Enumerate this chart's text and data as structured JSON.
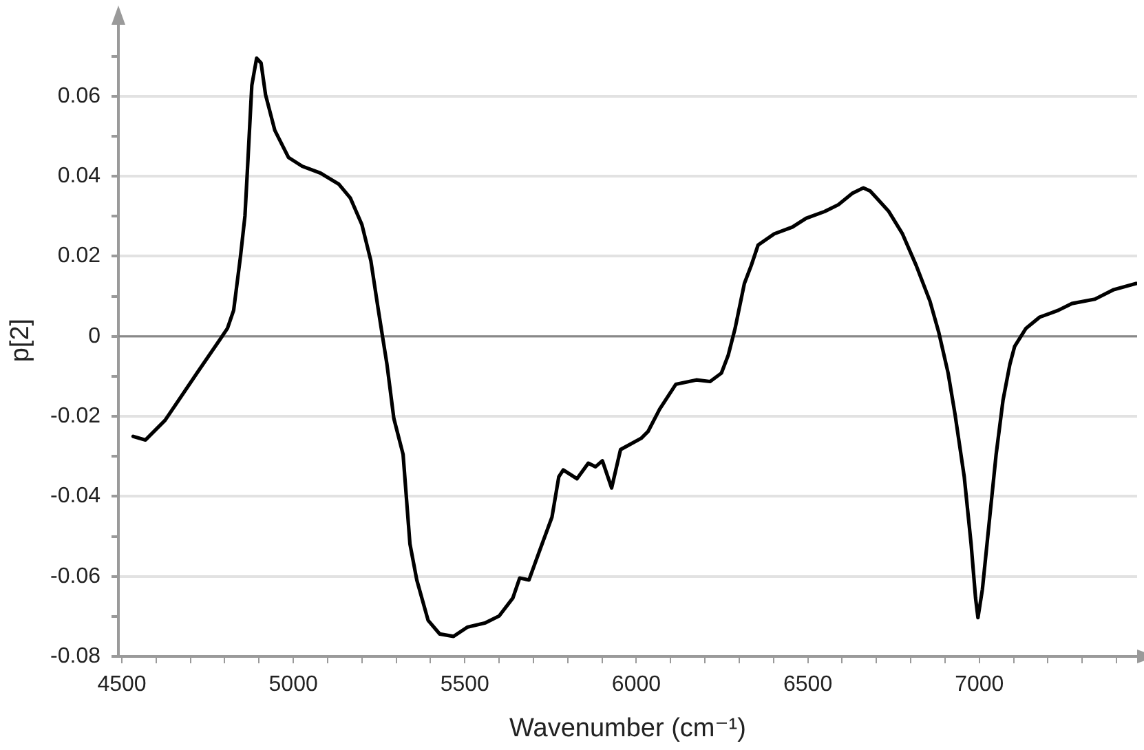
{
  "chart_data": {
    "type": "line",
    "xlabel": "Wavenumber (cm⁻¹)",
    "ylabel": "p[2]",
    "xlim": [
      4490,
      7460
    ],
    "ylim": [
      -0.08,
      0.078
    ],
    "xticks": [
      4500,
      {
        "value": 4600,
        "label": null
      },
      {
        "value": 4700,
        "label": null
      },
      {
        "value": 4800,
        "label": null
      },
      {
        "value": 4900,
        "label": null
      },
      5000,
      {
        "value": 5100,
        "label": null
      },
      {
        "value": 5200,
        "label": null
      },
      {
        "value": 5300,
        "label": null
      },
      {
        "value": 5400,
        "label": null
      },
      5500,
      {
        "value": 5600,
        "label": null
      },
      {
        "value": 5700,
        "label": null
      },
      {
        "value": 5800,
        "label": null
      },
      {
        "value": 5900,
        "label": null
      },
      6000,
      {
        "value": 6100,
        "label": null
      },
      {
        "value": 6200,
        "label": null
      },
      {
        "value": 6300,
        "label": null
      },
      {
        "value": 6400,
        "label": null
      },
      6500,
      {
        "value": 6600,
        "label": null
      },
      {
        "value": 6700,
        "label": null
      },
      {
        "value": 6800,
        "label": null
      },
      {
        "value": 6900,
        "label": null
      },
      7000,
      {
        "value": 7100,
        "label": null
      },
      {
        "value": 7200,
        "label": null
      },
      {
        "value": 7300,
        "label": null
      },
      {
        "value": 7400,
        "label": null
      }
    ],
    "yticks": [
      -0.08,
      {
        "value": -0.07,
        "label": null
      },
      -0.06,
      {
        "value": -0.05,
        "label": null
      },
      -0.04,
      {
        "value": -0.03,
        "label": null
      },
      -0.02,
      {
        "value": -0.01,
        "label": null
      },
      0,
      {
        "value": 0.01,
        "label": null
      },
      0.02,
      {
        "value": 0.03,
        "label": null
      },
      0.04,
      {
        "value": 0.05,
        "label": null
      },
      0.06,
      {
        "value": 0.07,
        "label": null
      }
    ],
    "grid": "y",
    "legend": false,
    "marker": "none",
    "line_style": "solid",
    "ref_lines": [
      {
        "axis": "y",
        "value": 0,
        "color": "#888888"
      }
    ],
    "series": [
      {
        "color": "#000000",
        "x": [
          4533,
          4569,
          4626,
          4719,
          4786,
          4808,
          4826,
          4846,
          4859,
          4866,
          4879,
          4893,
          4906,
          4919,
          4946,
          4986,
          5026,
          5079,
          5133,
          5166,
          5200,
          5226,
          5246,
          5260,
          5273,
          5293,
          5320,
          5340,
          5360,
          5393,
          5427,
          5467,
          5507,
          5560,
          5600,
          5640,
          5660,
          5687,
          5720,
          5754,
          5774,
          5787,
          5827,
          5860,
          5881,
          5901,
          5928,
          5954,
          6014,
          6034,
          6068,
          6115,
          6175,
          6215,
          6248,
          6268,
          6288,
          6315,
          6335,
          6355,
          6402,
          6455,
          6495,
          6549,
          6589,
          6629,
          6662,
          6682,
          6736,
          6776,
          6816,
          6856,
          6882,
          6909,
          6929,
          6956,
          6976,
          6989,
          6996,
          7009,
          7029,
          7049,
          7069,
          7089,
          7103,
          7136,
          7176,
          7230,
          7270,
          7337,
          7390,
          7457
        ],
        "values": [
          -0.025,
          -0.0259,
          -0.021,
          -0.0092,
          -0.0008,
          0.002,
          0.0065,
          0.02,
          0.0301,
          0.0413,
          0.0627,
          0.0695,
          0.0683,
          0.0604,
          0.0515,
          0.0447,
          0.0425,
          0.0408,
          0.038,
          0.0346,
          0.0279,
          0.0189,
          0.0076,
          0,
          -0.007,
          -0.0205,
          -0.0295,
          -0.0519,
          -0.0609,
          -0.071,
          -0.0744,
          -0.075,
          -0.0727,
          -0.0716,
          -0.0699,
          -0.0654,
          -0.0604,
          -0.0609,
          -0.0531,
          -0.0452,
          -0.0351,
          -0.0334,
          -0.0356,
          -0.0317,
          -0.0326,
          -0.0311,
          -0.0379,
          -0.0283,
          -0.0255,
          -0.0238,
          -0.0182,
          -0.012,
          -0.0109,
          -0.0113,
          -0.0092,
          -0.0047,
          0.002,
          0.0132,
          0.0177,
          0.0228,
          0.0256,
          0.0273,
          0.0295,
          0.0312,
          0.0329,
          0.0357,
          0.0371,
          0.0363,
          0.0312,
          0.0256,
          0.0177,
          0.0088,
          0.0009,
          -0.0092,
          -0.0194,
          -0.0351,
          -0.0519,
          -0.0654,
          -0.0703,
          -0.0632,
          -0.0463,
          -0.0295,
          -0.016,
          -0.007,
          -0.0025,
          0.002,
          0.0048,
          0.0065,
          0.0082,
          0.0093,
          0.0116,
          0.0132
        ]
      }
    ]
  }
}
